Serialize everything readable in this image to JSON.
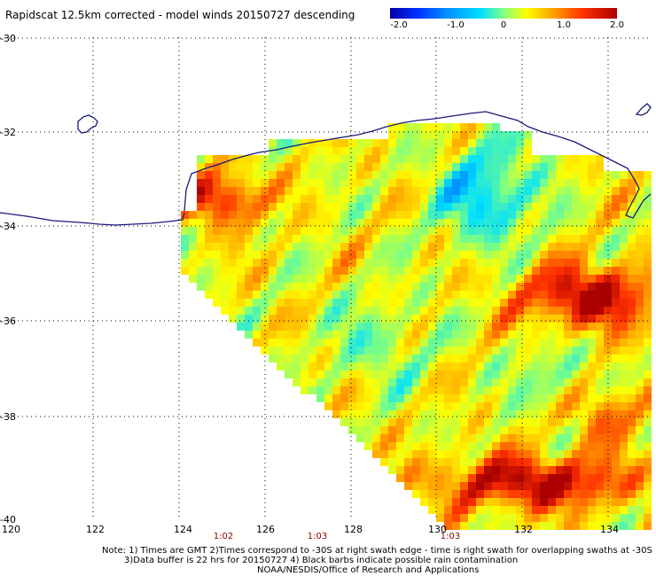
{
  "title": "Rapidscat 12.5km corrected - model winds 20150727 descending",
  "colorbar": {
    "labels": [
      "-2.0",
      "-1.0",
      "0",
      "1.0",
      "2.0"
    ],
    "colors": [
      "#0000aa",
      "#0030ff",
      "#0090ff",
      "#00e0ff",
      "#80ff80",
      "#ffff00",
      "#ffa000",
      "#ff3000",
      "#aa0000"
    ]
  },
  "lon_labels": [
    "120",
    "122",
    "124",
    "126",
    "128",
    "130",
    "132",
    "134"
  ],
  "lat_labels": [
    "-30",
    "-32",
    "-34",
    "-36",
    "-38",
    "-40"
  ],
  "time_labels": [
    "1:02",
    "1:03",
    "1:03"
  ],
  "notes": [
    "Note: 1) Times are GMT 2)Times correspond to -30S at right swath edge - time is right swath for overlapping swaths at -30S",
    "3)Data buffer is 22 hrs for 20150727 4) Black barbs indicate possible rain contamination",
    "NOAA/NESDIS/Office of Research and Applications"
  ]
}
